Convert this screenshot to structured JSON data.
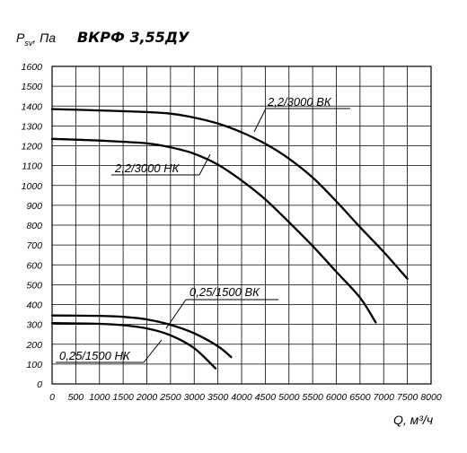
{
  "chart_data": {
    "type": "line",
    "title": "ВКРФ 3,55ДУ",
    "ylabel_main": "P",
    "ylabel_sub": "sv",
    "ylabel_unit": ", Па",
    "xlabel": "Q, м³/ч",
    "xlim": [
      0,
      8000
    ],
    "ylim": [
      0,
      1600
    ],
    "x_ticks": [
      0,
      500,
      1000,
      1500,
      2000,
      2500,
      3000,
      3500,
      4000,
      4500,
      5000,
      5500,
      6000,
      6500,
      7000,
      7500,
      8000
    ],
    "y_ticks": [
      0,
      100,
      200,
      300,
      400,
      500,
      600,
      700,
      800,
      900,
      1000,
      1100,
      1200,
      1300,
      1400,
      1500,
      1600
    ],
    "grid": true,
    "series": [
      {
        "name": "2,2/3000 ВК",
        "points": [
          [
            0,
            1385
          ],
          [
            1000,
            1378
          ],
          [
            2000,
            1370
          ],
          [
            2500,
            1362
          ],
          [
            3000,
            1342
          ],
          [
            3500,
            1312
          ],
          [
            4000,
            1268
          ],
          [
            4500,
            1210
          ],
          [
            5000,
            1135
          ],
          [
            5500,
            1040
          ],
          [
            6000,
            920
          ],
          [
            6500,
            790
          ],
          [
            7000,
            665
          ],
          [
            7500,
            530
          ]
        ]
      },
      {
        "name": "2,2/3000 НК",
        "points": [
          [
            0,
            1235
          ],
          [
            1000,
            1226
          ],
          [
            2000,
            1212
          ],
          [
            2500,
            1192
          ],
          [
            3000,
            1160
          ],
          [
            3500,
            1105
          ],
          [
            4000,
            1025
          ],
          [
            4500,
            930
          ],
          [
            5000,
            815
          ],
          [
            5500,
            695
          ],
          [
            6000,
            565
          ],
          [
            6500,
            435
          ],
          [
            6830,
            310
          ]
        ]
      },
      {
        "name": "0,25/1500 ВК",
        "points": [
          [
            0,
            345
          ],
          [
            1000,
            343
          ],
          [
            1500,
            338
          ],
          [
            2000,
            325
          ],
          [
            2500,
            298
          ],
          [
            3000,
            255
          ],
          [
            3500,
            190
          ],
          [
            3780,
            135
          ]
        ]
      },
      {
        "name": "0,25/1500 НК",
        "points": [
          [
            0,
            307
          ],
          [
            1000,
            303
          ],
          [
            1500,
            296
          ],
          [
            2000,
            280
          ],
          [
            2500,
            245
          ],
          [
            3000,
            180
          ],
          [
            3450,
            78
          ]
        ]
      }
    ],
    "curve_labels": [
      {
        "text": "2,2/3000 ВК",
        "series": 0
      },
      {
        "text": "2,2/3000 НК",
        "series": 1
      },
      {
        "text": "0,25/1500 ВК",
        "series": 2
      },
      {
        "text": "0,25/1500 НК",
        "series": 3
      }
    ]
  }
}
